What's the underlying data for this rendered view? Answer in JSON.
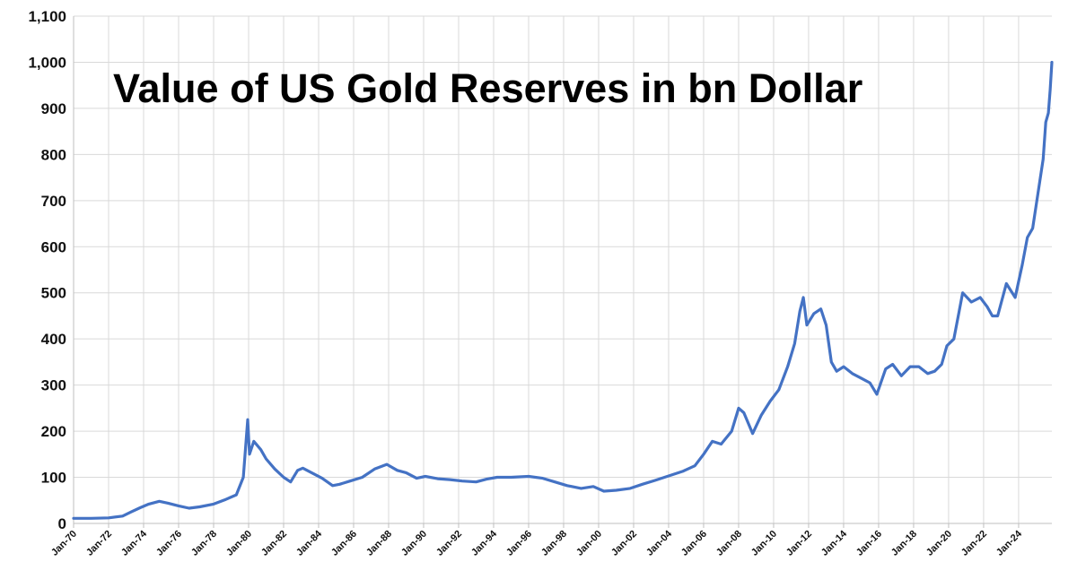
{
  "chart_data": {
    "type": "line",
    "title": "Value of US Gold Reserves in bn Dollar",
    "xlabel": "",
    "ylabel": "",
    "ylim": [
      0,
      1100
    ],
    "yticks": [
      0,
      100,
      200,
      300,
      400,
      500,
      600,
      700,
      800,
      900,
      1000,
      1100
    ],
    "ytick_labels": [
      "0",
      "100",
      "200",
      "300",
      "400",
      "500",
      "600",
      "700",
      "800",
      "900",
      "1,000",
      "1,100"
    ],
    "xlim": [
      1970,
      2025.9
    ],
    "xtick_labels": [
      "Jan-70",
      "Jan-72",
      "Jan-74",
      "Jan-76",
      "Jan-78",
      "Jan-80",
      "Jan-82",
      "Jan-84",
      "Jan-86",
      "Jan-88",
      "Jan-90",
      "Jan-92",
      "Jan-94",
      "Jan-96",
      "Jan-98",
      "Jan-00",
      "Jan-02",
      "Jan-04",
      "Jan-06",
      "Jan-08",
      "Jan-10",
      "Jan-12",
      "Jan-14",
      "Jan-16",
      "Jan-18",
      "Jan-20",
      "Jan-22",
      "Jan-24"
    ],
    "grid": true,
    "legend": "none",
    "series": [
      {
        "name": "Value of US Gold Reserves",
        "color": "#4472c4",
        "x": [
          1970.0,
          1971.0,
          1972.0,
          1972.8,
          1973.3,
          1973.8,
          1974.3,
          1974.9,
          1975.4,
          1976.0,
          1976.6,
          1977.2,
          1978.0,
          1978.7,
          1979.3,
          1979.7,
          1979.95,
          1980.05,
          1980.3,
          1980.7,
          1981.0,
          1981.5,
          1982.0,
          1982.4,
          1982.8,
          1983.1,
          1983.6,
          1984.2,
          1984.8,
          1985.2,
          1985.8,
          1986.5,
          1987.2,
          1987.9,
          1988.5,
          1989.0,
          1989.6,
          1990.1,
          1990.8,
          1991.5,
          1992.2,
          1993.0,
          1993.6,
          1994.2,
          1995.0,
          1996.0,
          1996.8,
          1997.5,
          1998.2,
          1999.0,
          1999.7,
          2000.3,
          2001.0,
          2001.8,
          2002.5,
          2003.2,
          2004.0,
          2004.8,
          2005.5,
          2006.0,
          2006.5,
          2007.0,
          2007.6,
          2008.0,
          2008.3,
          2008.8,
          2009.3,
          2009.8,
          2010.3,
          2010.8,
          2011.2,
          2011.5,
          2011.7,
          2011.9,
          2012.3,
          2012.7,
          2013.0,
          2013.3,
          2013.6,
          2014.0,
          2014.5,
          2015.0,
          2015.5,
          2015.9,
          2016.4,
          2016.8,
          2017.3,
          2017.8,
          2018.3,
          2018.8,
          2019.2,
          2019.6,
          2019.9,
          2020.3,
          2020.6,
          2020.8,
          2021.3,
          2021.8,
          2022.2,
          2022.5,
          2022.8,
          2023.3,
          2023.8,
          2024.2,
          2024.5,
          2024.8,
          2025.0,
          2025.2,
          2025.4,
          2025.55,
          2025.7,
          2025.8,
          2025.9
        ],
        "values": [
          11,
          11,
          12,
          16,
          25,
          34,
          42,
          48,
          44,
          38,
          33,
          36,
          42,
          52,
          62,
          100,
          225,
          150,
          178,
          160,
          140,
          118,
          100,
          90,
          115,
          120,
          110,
          98,
          82,
          85,
          92,
          100,
          118,
          128,
          115,
          110,
          98,
          102,
          97,
          95,
          92,
          90,
          96,
          100,
          100,
          102,
          98,
          90,
          82,
          76,
          80,
          70,
          72,
          76,
          85,
          93,
          103,
          113,
          125,
          150,
          178,
          172,
          200,
          250,
          240,
          195,
          235,
          265,
          290,
          340,
          390,
          460,
          490,
          430,
          455,
          465,
          430,
          350,
          330,
          340,
          325,
          315,
          305,
          280,
          335,
          345,
          320,
          340,
          340,
          325,
          330,
          345,
          385,
          400,
          460,
          500,
          480,
          490,
          470,
          450,
          450,
          520,
          490,
          560,
          620,
          640,
          690,
          740,
          790,
          870,
          890,
          940,
          1000
        ]
      }
    ]
  }
}
